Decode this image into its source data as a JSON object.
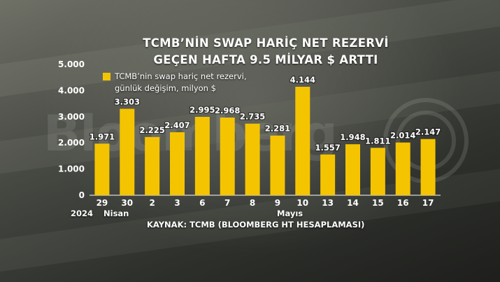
{
  "title_lines": [
    "TCMB’NİN SWAP HARİÇ NET REZERVİ",
    "GEÇEN HAFTA 9.5 MİLYAR $ ARTTI"
  ],
  "watermark": "Bloomberg",
  "legend_lines": [
    "TCMB’nin swap hariç net rezervi,",
    "günlük değişim, milyon $"
  ],
  "year_label": "2024",
  "month_labels": [
    "Nisan",
    "Mayıs"
  ],
  "source": "KAYNAK: TCMB (BLOOMBERG HT HESAPLAMASI)",
  "colors": {
    "bar": "#f5c400",
    "text": "#ffffff",
    "axis": "#ffffff"
  },
  "chart_data": {
    "type": "bar",
    "title": "TCMB’NİN SWAP HARİÇ NET REZERVİ GEÇEN HAFTA 9.5 MİLYAR $ ARTTI",
    "series_name": "TCMB’nin swap hariç net rezervi, günlük değişim, milyon $",
    "categories": [
      "29",
      "30",
      "2",
      "3",
      "6",
      "7",
      "8",
      "9",
      "10",
      "13",
      "14",
      "15",
      "16",
      "17"
    ],
    "values": [
      1971,
      3303,
      2225,
      2407,
      2995,
      2968,
      2735,
      2281,
      4144,
      1557,
      1948,
      1811,
      2014,
      2147
    ],
    "value_labels": [
      "1.971",
      "3.303",
      "2.225",
      "2.407",
      "2.995",
      "2.968",
      "2.735",
      "2.281",
      "4.144",
      "1.557",
      "1.948",
      "1.811",
      "2.014",
      "2.147"
    ],
    "yticks": [
      0,
      1000,
      2000,
      3000,
      4000,
      5000
    ],
    "ytick_labels": [
      "0",
      "1.000",
      "2.000",
      "3.000",
      "4.000",
      "5.000"
    ],
    "ylim": [
      0,
      5000
    ],
    "xlabel": "",
    "ylabel": "",
    "grid": false,
    "legend_position": "top-left"
  }
}
